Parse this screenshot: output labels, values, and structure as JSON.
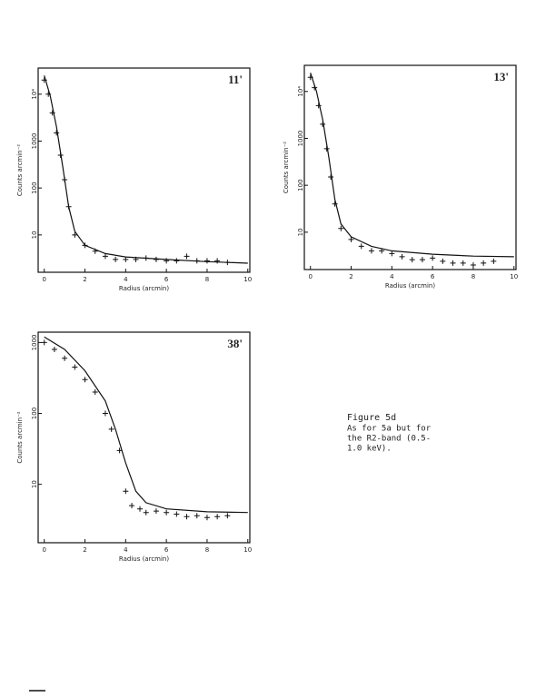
{
  "chart_data": [
    {
      "type": "scatter",
      "title": "11'",
      "xlabel": "Radius (arcmin)",
      "ylabel": "Counts arcmin⁻²",
      "log_y": true,
      "xlim": [
        -0.3,
        10.1
      ],
      "xticks": [
        0,
        2,
        4,
        6,
        8,
        10
      ],
      "ylim": [
        1.6,
        36000
      ],
      "yticks": [
        10,
        100,
        1000,
        {
          "value": 10000,
          "label": "10⁴"
        }
      ],
      "color": "#111111",
      "series": [
        {
          "color": "#111111",
          "x": [
            0,
            0.2,
            0.4,
            0.6,
            0.8,
            1.0,
            1.2,
            1.5,
            2,
            2.5,
            3,
            3.5,
            4,
            4.5,
            5,
            5.5,
            6,
            6.5,
            7,
            7.5,
            8,
            8.5,
            9
          ],
          "values": [
            20000,
            10000,
            4000,
            1500,
            500,
            150,
            40,
            10,
            6,
            4.5,
            3.5,
            3,
            3,
            3,
            3.2,
            3,
            2.8,
            2.8,
            3.5,
            2.8,
            2.8,
            2.8,
            2.6
          ]
        },
        {
          "color": "#111111",
          "line": true,
          "x": [
            0,
            0.3,
            0.6,
            0.9,
            1.2,
            1.5,
            2,
            3,
            4,
            6,
            8,
            10
          ],
          "values": [
            25000,
            9000,
            2000,
            300,
            40,
            12,
            6,
            4,
            3.4,
            3,
            2.7,
            2.5
          ]
        }
      ]
    },
    {
      "type": "scatter",
      "title": "13'",
      "xlabel": "Radius (arcmin)",
      "ylabel": "Counts arcmin⁻²",
      "log_y": true,
      "xlim": [
        -0.3,
        10.1
      ],
      "xticks": [
        0,
        2,
        4,
        6,
        8,
        10
      ],
      "ylim": [
        1.6,
        36000
      ],
      "yticks": [
        10,
        100,
        1000,
        {
          "value": 10000,
          "label": "10⁴"
        }
      ],
      "color": "#111111",
      "series": [
        {
          "color": "#111111",
          "x": [
            0,
            0.2,
            0.4,
            0.6,
            0.8,
            1.0,
            1.2,
            1.5,
            2,
            2.5,
            3,
            3.5,
            4,
            4.5,
            5,
            5.5,
            6,
            6.5,
            7,
            7.5,
            8,
            8.5,
            9
          ],
          "values": [
            20000,
            12000,
            5000,
            2000,
            600,
            150,
            40,
            12,
            7,
            5,
            4,
            4,
            3.5,
            3,
            2.6,
            2.6,
            2.8,
            2.4,
            2.2,
            2.2,
            2,
            2.2,
            2.4
          ]
        },
        {
          "color": "#111111",
          "line": true,
          "x": [
            0,
            0.3,
            0.6,
            0.9,
            1.2,
            1.5,
            2,
            3,
            4,
            6,
            8,
            10
          ],
          "values": [
            25000,
            10000,
            2500,
            400,
            50,
            15,
            8,
            5,
            4,
            3.4,
            3.1,
            3
          ]
        }
      ]
    },
    {
      "type": "scatter",
      "title": "38'",
      "xlabel": "Radius (arcmin)",
      "ylabel": "Counts arcmin⁻²",
      "log_y": true,
      "xlim": [
        -0.3,
        10.1
      ],
      "xticks": [
        0,
        2,
        4,
        6,
        8,
        10
      ],
      "ylim": [
        1.5,
        1400
      ],
      "yticks": [
        10,
        100,
        1000
      ],
      "color": "#111111",
      "series": [
        {
          "color": "#111111",
          "x": [
            0,
            0.5,
            1,
            1.5,
            2,
            2.5,
            3,
            3.3,
            3.7,
            4,
            4.3,
            4.7,
            5,
            5.5,
            6,
            6.5,
            7,
            7.5,
            8,
            8.5,
            9
          ],
          "values": [
            1000,
            800,
            600,
            450,
            300,
            200,
            100,
            60,
            30,
            8,
            5,
            4.5,
            4,
            4.2,
            4,
            3.8,
            3.5,
            3.6,
            3.4,
            3.5,
            3.6
          ]
        },
        {
          "color": "#111111",
          "line": true,
          "x": [
            0,
            1,
            2,
            3,
            3.5,
            4,
            4.5,
            5,
            6,
            8,
            10
          ],
          "values": [
            1200,
            800,
            400,
            150,
            60,
            20,
            8,
            5.5,
            4.5,
            4.1,
            4
          ]
        }
      ]
    }
  ],
  "caption": {
    "label": "Figure  5d",
    "lines": [
      "As for 5a but for",
      "the R2-band (0.5-",
      "1.0 keV)."
    ]
  }
}
